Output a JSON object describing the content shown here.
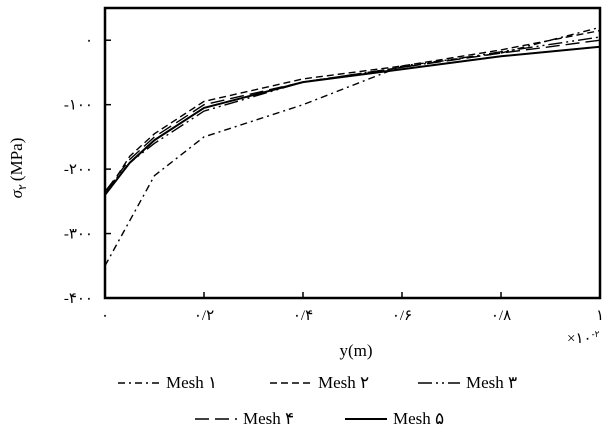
{
  "chart_data": {
    "type": "line",
    "xlabel": "y(m)",
    "ylabel": "σ",
    "ylabel_sub": "۲",
    "ylabel_unit": "(MPa)",
    "x_multiplier": "×۱۰",
    "x_multiplier_exp": "-۲",
    "xlim": [
      0,
      1
    ],
    "ylim": [
      -400,
      50
    ],
    "x_ticks": [
      {
        "value": 0,
        "label": "۰"
      },
      {
        "value": 0.2,
        "label": "۰/۲"
      },
      {
        "value": 0.4,
        "label": "۰/۴"
      },
      {
        "value": 0.6,
        "label": "۰/۶"
      },
      {
        "value": 0.8,
        "label": "۰/۸"
      },
      {
        "value": 1,
        "label": "۱"
      }
    ],
    "y_ticks": [
      {
        "value": 0,
        "label": "۰"
      },
      {
        "value": -100,
        "label": "-۱۰۰"
      },
      {
        "value": -200,
        "label": "-۲۰۰"
      },
      {
        "value": -300,
        "label": "-۳۰۰"
      },
      {
        "value": -400,
        "label": "-۴۰۰"
      }
    ],
    "grid": false,
    "legend_position": "bottom",
    "series": [
      {
        "name": "Mesh ۱",
        "dash": "dash-dot",
        "x": [
          0,
          0.1,
          0.2,
          0.4,
          0.6,
          0.8,
          1.0
        ],
        "y": [
          -350,
          -210,
          -150,
          -100,
          -40,
          -20,
          20
        ]
      },
      {
        "name": "Mesh ۲",
        "dash": "dashed",
        "x": [
          0,
          0.05,
          0.1,
          0.2,
          0.4,
          0.6,
          0.8,
          1.0
        ],
        "y": [
          -240,
          -180,
          -145,
          -95,
          -60,
          -40,
          -15,
          15
        ]
      },
      {
        "name": "Mesh ۳",
        "dash": "long-dash-dot",
        "x": [
          0,
          0.05,
          0.1,
          0.2,
          0.4,
          0.6,
          0.8,
          1.0
        ],
        "y": [
          -235,
          -190,
          -160,
          -110,
          -65,
          -42,
          -18,
          5
        ]
      },
      {
        "name": "Mesh ۴",
        "dash": "long-dash",
        "x": [
          0,
          0.05,
          0.1,
          0.2,
          0.4,
          0.6,
          0.8,
          1.0
        ],
        "y": [
          -235,
          -185,
          -150,
          -100,
          -65,
          -42,
          -20,
          0
        ]
      },
      {
        "name": "Mesh ۵",
        "dash": "solid",
        "x": [
          0,
          0.05,
          0.1,
          0.2,
          0.4,
          0.6,
          0.8,
          1.0
        ],
        "y": [
          -240,
          -190,
          -155,
          -105,
          -65,
          -45,
          -25,
          -10
        ]
      }
    ]
  }
}
